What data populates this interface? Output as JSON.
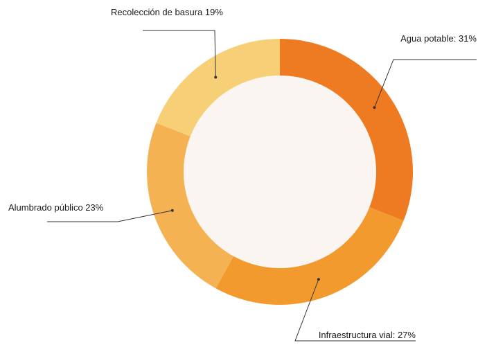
{
  "chart_data": {
    "type": "pie",
    "donut": true,
    "title": "",
    "slices": [
      {
        "category": "Agua potable",
        "value": 31,
        "label": "Agua potable: 31%",
        "color": "#EE7B22"
      },
      {
        "category": "Infraestructura vial",
        "value": 27,
        "label": "Infraestructura vial: 27%",
        "color": "#F29A2E"
      },
      {
        "category": "Alumbrado público",
        "value": 23,
        "label": "Alumbrado público 23%",
        "color": "#F5B252"
      },
      {
        "category": "Recolección de basura",
        "value": 19,
        "label": "Recolección de basura 19%",
        "color": "#F7CF76"
      }
    ],
    "center_fill": "#FAF5F0",
    "legend": "none"
  }
}
